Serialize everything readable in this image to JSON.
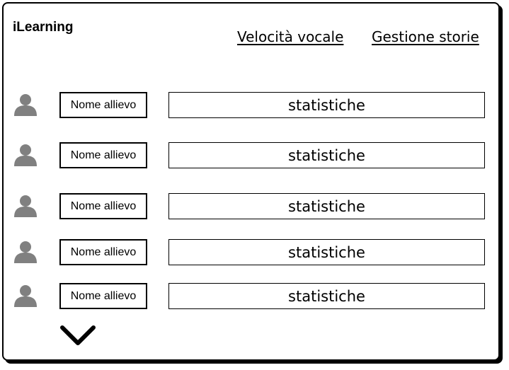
{
  "header": {
    "app_title": "iLearning",
    "nav": {
      "speech_speed": "Velocità vocale",
      "story_management": "Gestione storie"
    }
  },
  "students": [
    {
      "name": "Nome allievo",
      "stats_label": "statistiche",
      "icon": "user-icon"
    },
    {
      "name": "Nome allievo",
      "stats_label": "statistiche",
      "icon": "user-icon"
    },
    {
      "name": "Nome allievo",
      "stats_label": "statistiche",
      "icon": "user-icon"
    },
    {
      "name": "Nome allievo",
      "stats_label": "statistiche",
      "icon": "user-icon"
    },
    {
      "name": "Nome allievo",
      "stats_label": "statistiche",
      "icon": "user-icon"
    }
  ],
  "footer": {
    "scroll_icon": "chevron-down-icon"
  },
  "colors": {
    "avatar": "#808080",
    "border": "#000000",
    "background": "#ffffff"
  }
}
